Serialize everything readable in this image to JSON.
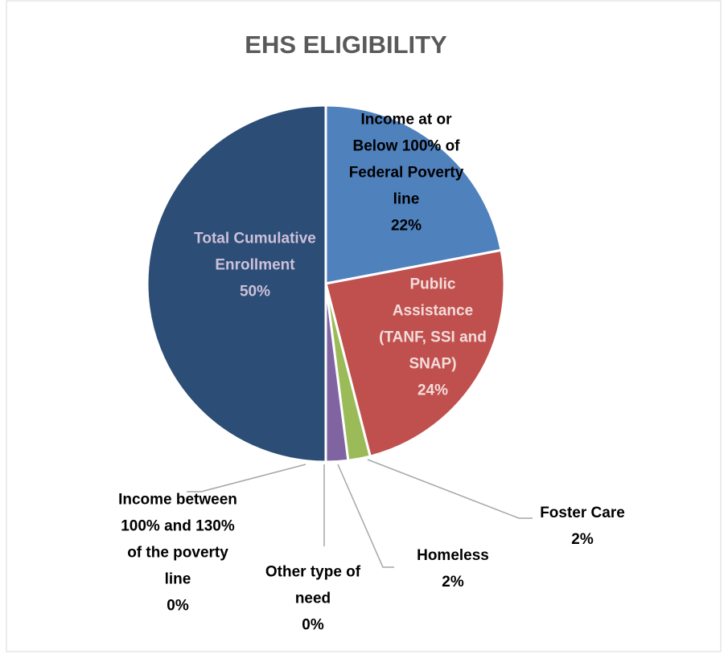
{
  "chart_data": {
    "type": "pie",
    "title": "EHS ELIGIBILITY",
    "categories": [
      "Income at or Below 100% of Federal Poverty line",
      "Public Assistance (TANF, SSI and SNAP)",
      "Foster Care",
      "Homeless",
      "Other type of need",
      "Income between 100% and 130% of the poverty line",
      "Total Cumulative Enrollment"
    ],
    "values": [
      22,
      24,
      2,
      2,
      0,
      0,
      50
    ],
    "value_labels": [
      "22%",
      "24%",
      "2%",
      "2%",
      "0%",
      "0%",
      "50%"
    ],
    "colors": [
      "#4f81bd",
      "#c0504d",
      "#9bbb59",
      "#8064a2",
      "#4bacc6",
      "#f79646",
      "#2c4d75"
    ]
  }
}
